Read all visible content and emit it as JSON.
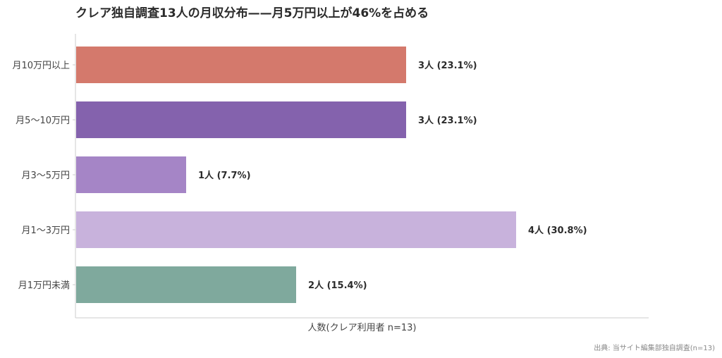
{
  "chart_data": {
    "type": "bar",
    "orientation": "horizontal",
    "title": "クレア独自調査13人の月収分布——月5万円以上が46%を占める",
    "xlabel": "人数(クレア利用者 n=13)",
    "ylabel": "",
    "categories": [
      "月10万円以上",
      "月5〜10万円",
      "月3〜5万円",
      "月1〜3万円",
      "月1万円未満"
    ],
    "values": [
      3,
      3,
      1,
      4,
      2
    ],
    "value_labels": [
      "3人 (23.1%)",
      "3人 (23.1%)",
      "1人 (7.7%)",
      "4人 (30.8%)",
      "2人 (15.4%)"
    ],
    "colors": [
      "#d4796c",
      "#8462ad",
      "#a585c6",
      "#c8b2dc",
      "#7fa99d"
    ],
    "xlim": [
      0,
      5.2
    ],
    "grid": false,
    "source": "出典: 当サイト編集部独自調査(n=13)"
  }
}
